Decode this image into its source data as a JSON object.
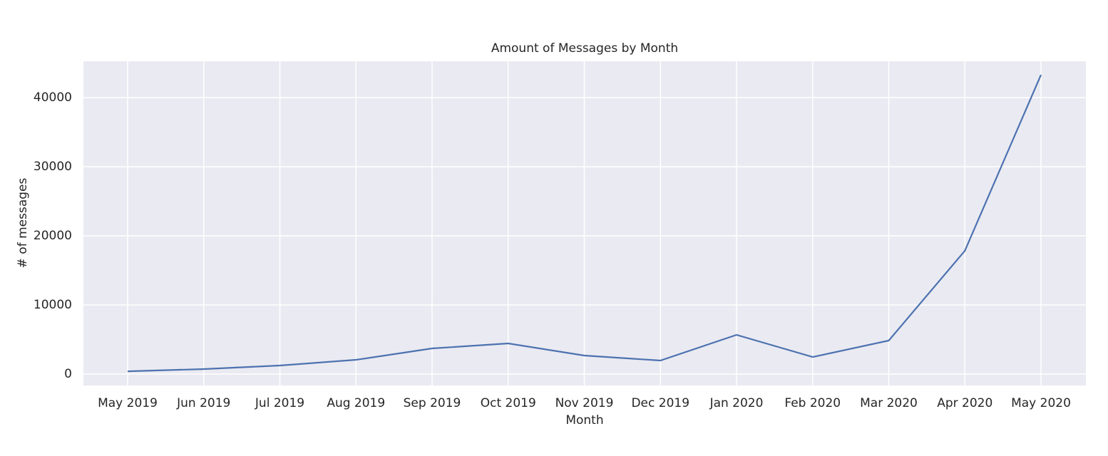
{
  "chart_data": {
    "type": "line",
    "title": "Amount of Messages by Month",
    "x_label": "Month",
    "y_label": "# of messages",
    "categories": [
      "May 2019",
      "Jun 2019",
      "Jul 2019",
      "Aug 2019",
      "Sep 2019",
      "Oct 2019",
      "Nov 2019",
      "Dec 2019",
      "Jan 2020",
      "Feb 2020",
      "Mar 2020",
      "Apr 2020",
      "May 2020"
    ],
    "series": [
      {
        "name": "messages",
        "color": "#4c72b0",
        "values": [
          400,
          720,
          1240,
          2060,
          3710,
          4430,
          2680,
          1960,
          5670,
          2470,
          4850,
          17840,
          43300
        ]
      }
    ],
    "ylim": [
      -1650,
      45260
    ],
    "yticks": [
      0,
      10000,
      20000,
      30000,
      40000
    ],
    "grid": true,
    "background": "#eaeaf2"
  }
}
